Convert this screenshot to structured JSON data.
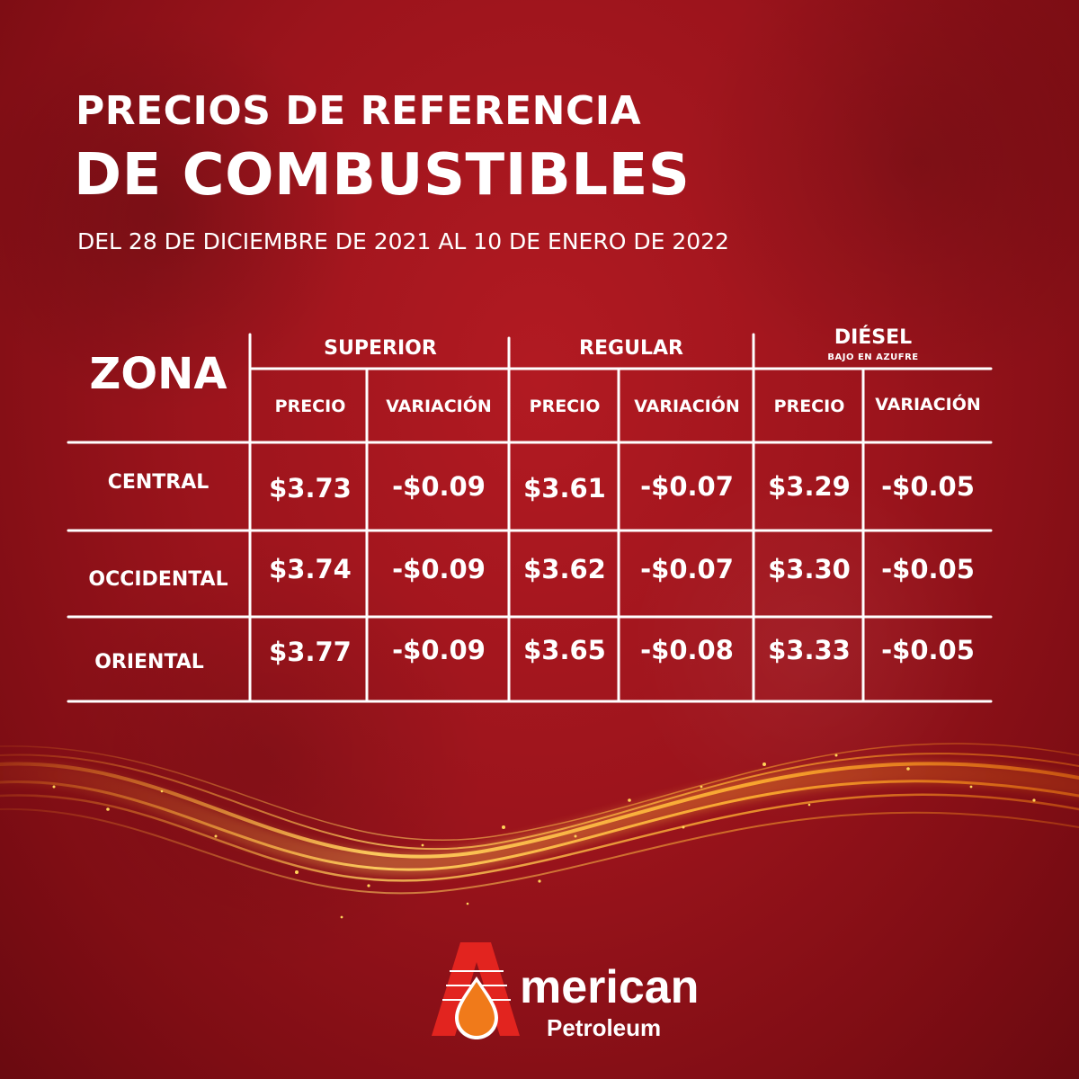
{
  "header": {
    "title_line1": "PRECIOS DE REFERENCIA",
    "title_line2": "DE COMBUSTIBLES",
    "period": "DEL 28 DE DICIEMBRE DE 2021 AL 10 DE ENERO DE 2022"
  },
  "table": {
    "zona_label": "ZONA",
    "groups": [
      {
        "label": "SUPERIOR",
        "note": ""
      },
      {
        "label": "REGULAR",
        "note": ""
      },
      {
        "label": "DIÉSEL",
        "note": "BAJO EN AZUFRE"
      }
    ],
    "sub_headers": [
      "PRECIO",
      "VARIACIÓN",
      "PRECIO",
      "VARIACIÓN",
      "PRECIO",
      "VARIACIÓN"
    ],
    "rows": [
      {
        "zone": "CENTRAL",
        "values": [
          "$3.73",
          "-$0.09",
          "$3.61",
          "-$0.07",
          "$3.29",
          "-$0.05"
        ]
      },
      {
        "zone": "OCCIDENTAL",
        "values": [
          "$3.74",
          "-$0.09",
          "$3.62",
          "-$0.07",
          "$3.30",
          "-$0.05"
        ]
      },
      {
        "zone": "ORIENTAL",
        "values": [
          "$3.77",
          "-$0.09",
          "$3.65",
          "-$0.08",
          "$3.33",
          "-$0.05"
        ]
      }
    ]
  },
  "brand": {
    "name": "merican",
    "sub": "Petroleum",
    "logo_colors": {
      "red": "#e2241f",
      "drop": "#f07a1a",
      "white": "#ffffff"
    }
  },
  "theme": {
    "background": "#9c141c",
    "lines": "#ffffff",
    "flame": "#ffb020"
  }
}
